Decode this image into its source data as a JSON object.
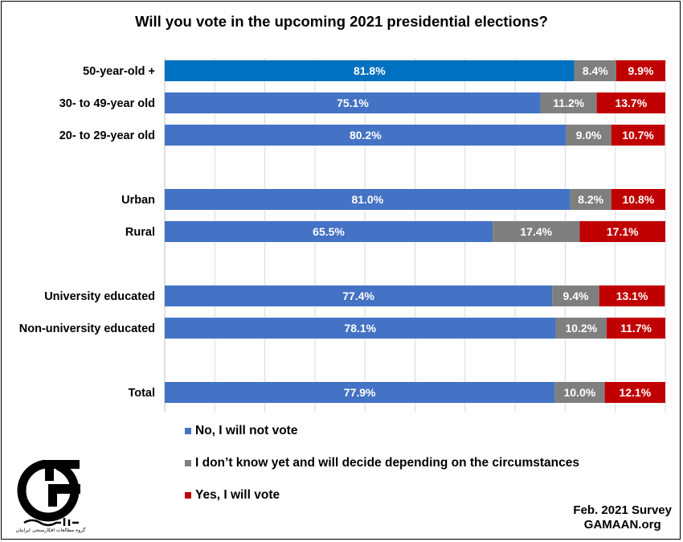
{
  "title": "Will you vote in the upcoming 2021 presidential elections?",
  "colors": {
    "no": "#4472C4",
    "no_highlight": "#0070C0",
    "dont_know": "#7F7F7F",
    "yes": "#C00000"
  },
  "chart_data": {
    "type": "bar",
    "orientation": "horizontal",
    "stacked": true,
    "percent_scale": true,
    "xlim": [
      0,
      100
    ],
    "grid": true,
    "legend_placement": "bottom",
    "categories": [
      "50-year-old +",
      "30- to 49-year old",
      "20- to 29-year old",
      "Urban",
      "Rural",
      "University educated",
      "Non-university educated",
      "Total"
    ],
    "series": [
      {
        "name": "No, I will not vote",
        "values": [
          81.8,
          75.1,
          80.2,
          81.0,
          65.5,
          77.4,
          78.1,
          77.9
        ],
        "labels": [
          "81.8%",
          "75.1%",
          "80.2%",
          "81.0%",
          "65.5%",
          "77.4%",
          "78.1%",
          "77.9%"
        ]
      },
      {
        "name": "I don’t know yet and will decide depending on the circumstances",
        "values": [
          8.4,
          11.2,
          9.0,
          8.2,
          17.4,
          9.4,
          10.2,
          10.0
        ],
        "labels": [
          "8.4%",
          "11.2%",
          "9.0%",
          "8.2%",
          "17.4%",
          "9.4%",
          "10.2%",
          "10.0%"
        ]
      },
      {
        "name": "Yes, I will vote",
        "values": [
          9.9,
          13.7,
          10.7,
          10.8,
          17.1,
          13.1,
          11.7,
          12.1
        ],
        "labels": [
          "9.9%",
          "13.7%",
          "10.7%",
          "10.8%",
          "17.1%",
          "13.1%",
          "11.7%",
          "12.1%"
        ]
      }
    ]
  },
  "legend": {
    "no_label": "No, I will not vote",
    "dont_know_label": "I don’t know yet and will decide depending on the circumstances",
    "yes_label": "Yes, I will vote"
  },
  "footer": {
    "survey": "Feb. 2021 Survey",
    "site": "GAMAAN.org"
  },
  "logo": {
    "icon": "gamaan-logo-icon",
    "text": "گروه مطالعات افکارسنجی ایرانیان",
    "wordmark": "گمان"
  }
}
